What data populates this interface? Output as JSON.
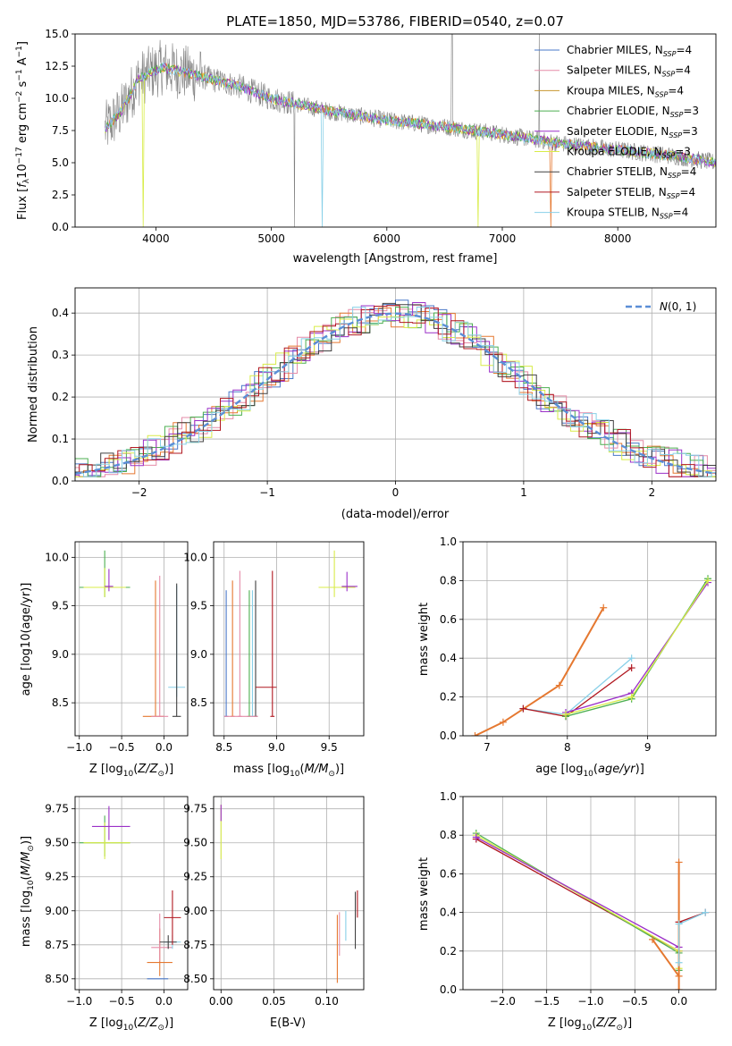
{
  "colors": {
    "chab_miles": "#4a78c8",
    "salp_miles": "#e58ca8",
    "krou_miles": "#c8962e",
    "chab_elodie": "#4caf50",
    "salp_elodie": "#9b30c8",
    "krou_elodie": "#d8ec48",
    "chab_stelib": "#404040",
    "salp_stelib": "#b01820",
    "krou_stelib": "#88d0e8",
    "orange": "#e57830",
    "gauss": "#5b8ed6",
    "data_grey": "#808080"
  },
  "legend_entries": [
    "Chabrier MILES, N_SSP=4",
    "Salpeter MILES, N_SSP=4",
    "Kroupa MILES, N_SSP=4",
    "Chabrier ELODIE, N_SSP=3",
    "Salpeter ELODIE, N_SSP=3",
    "Kroupa ELODIE, N_SSP=3",
    "Chabrier STELIB, N_SSP=4",
    "Salpeter STELIB, N_SSP=4",
    "Kroupa STELIB, N_SSP=4"
  ],
  "chart_data": [
    {
      "id": "spectrum",
      "type": "line",
      "title": "PLATE=1850, MJD=53786, FIBERID=0540, z=0.07",
      "xlabel": "wavelength [Angstrom, rest frame]",
      "ylabel": "Flux [f_λ10^-17 erg cm^-2 s^-1 A^-1]",
      "xlim": [
        3300,
        8850
      ],
      "ylim": [
        0,
        15
      ],
      "xticks": [
        4000,
        5000,
        6000,
        7000,
        8000
      ],
      "yticks": [
        0.0,
        2.5,
        5.0,
        7.5,
        10.0,
        12.5,
        15.0
      ],
      "grid": false,
      "legend": "top-right",
      "continuum": [
        [
          3560,
          7.6
        ],
        [
          3700,
          9.0
        ],
        [
          3850,
          11.5
        ],
        [
          4050,
          12.4
        ],
        [
          4300,
          11.9
        ],
        [
          4700,
          11.0
        ],
        [
          5000,
          10.0
        ],
        [
          5500,
          9.0
        ],
        [
          6000,
          8.3
        ],
        [
          6500,
          7.8
        ],
        [
          7000,
          7.2
        ],
        [
          7500,
          6.5
        ],
        [
          8000,
          6.0
        ],
        [
          8500,
          5.5
        ],
        [
          8850,
          5.0
        ]
      ]
    },
    {
      "id": "residual-histogram",
      "type": "line",
      "xlabel": "(data-model)/error",
      "ylabel": "Normed distribution",
      "xlim": [
        -2.5,
        2.5
      ],
      "ylim": [
        0,
        0.46
      ],
      "xticks": [
        -2,
        -1,
        0,
        1,
        2
      ],
      "yticks": [
        0.0,
        0.1,
        0.2,
        0.3,
        0.4
      ],
      "grid": true,
      "legend": "top-right",
      "gaussian_label": "N(0, 1)"
    },
    {
      "id": "age-vs-Z",
      "type": "scatter",
      "xlabel": "Z [log10(Z/Z⊙)]",
      "ylabel": "age  [log10(age/yr)]",
      "xlim": [
        -1.05,
        0.28
      ],
      "ylim": [
        8.16,
        10.16
      ],
      "xticks": [
        -1.0,
        -0.5,
        0.0
      ],
      "yticks": [
        8.5,
        9.0,
        9.5,
        10.0
      ],
      "grid": true
    },
    {
      "id": "age-vs-mass",
      "type": "scatter",
      "xlabel": "mass [log10(M/M⊙)]",
      "xlim": [
        8.4,
        9.83
      ],
      "ylim": [
        8.16,
        10.16
      ],
      "xticks": [
        8.5,
        9.0,
        9.5
      ],
      "yticks": [
        8.5,
        9.0,
        9.5,
        10.0
      ],
      "grid": true
    },
    {
      "id": "weight-vs-age",
      "type": "line",
      "xlabel": "age  [log10(age/yr)]",
      "ylabel": "mass weight",
      "xlim": [
        6.7,
        9.85
      ],
      "ylim": [
        0,
        1
      ],
      "xticks": [
        7,
        8,
        9
      ],
      "yticks": [
        0.0,
        0.2,
        0.4,
        0.6,
        0.8,
        1.0
      ],
      "grid": true,
      "series": [
        {
          "color": "orange",
          "points": [
            [
              6.85,
              0.0
            ],
            [
              7.2,
              0.07
            ],
            [
              7.9,
              0.26
            ],
            [
              8.45,
              0.66
            ]
          ]
        },
        {
          "color": "krou_stelib",
          "points": [
            [
              7.45,
              0.14
            ],
            [
              7.98,
              0.11
            ],
            [
              8.8,
              0.4
            ]
          ]
        },
        {
          "color": "salp_stelib",
          "points": [
            [
              7.45,
              0.14
            ],
            [
              7.98,
              0.1
            ],
            [
              8.8,
              0.35
            ]
          ]
        },
        {
          "color": "salp_elodie",
          "points": [
            [
              7.98,
              0.12
            ],
            [
              8.8,
              0.22
            ],
            [
              9.75,
              0.79
            ]
          ]
        },
        {
          "color": "chab_elodie",
          "points": [
            [
              7.98,
              0.1
            ],
            [
              8.8,
              0.19
            ],
            [
              9.75,
              0.81
            ]
          ]
        },
        {
          "color": "krou_elodie",
          "points": [
            [
              7.98,
              0.11
            ],
            [
              8.8,
              0.2
            ],
            [
              9.75,
              0.8
            ]
          ]
        }
      ]
    },
    {
      "id": "mass-vs-Z",
      "type": "scatter",
      "xlabel": "Z [log10(Z/Z⊙)]",
      "ylabel": "mass [log10(M/M⊙)]",
      "xlim": [
        -1.05,
        0.28
      ],
      "ylim": [
        8.42,
        9.84
      ],
      "xticks": [
        -1.0,
        -0.5,
        0.0
      ],
      "yticks": [
        8.5,
        8.75,
        9.0,
        9.25,
        9.5,
        9.75
      ],
      "grid": true
    },
    {
      "id": "mass-vs-EBV",
      "type": "scatter",
      "xlabel": "E(B-V)",
      "xlim": [
        -0.007,
        0.135
      ],
      "ylim": [
        8.42,
        9.84
      ],
      "xticks": [
        0.0,
        0.05,
        0.1
      ],
      "yticks": [
        8.5,
        8.75,
        9.0,
        9.25,
        9.5,
        9.75
      ],
      "grid": true
    },
    {
      "id": "weight-vs-Z",
      "type": "line",
      "xlabel": "Z [log10(Z/Z⊙)]",
      "ylabel": "mass weight",
      "xlim": [
        -2.45,
        0.42
      ],
      "ylim": [
        0,
        1
      ],
      "xticks": [
        -2.0,
        -1.5,
        -1.0,
        -0.5,
        0.0
      ],
      "yticks": [
        0.0,
        0.2,
        0.4,
        0.6,
        0.8,
        1.0
      ],
      "grid": true,
      "series": [
        {
          "color": "salp_stelib",
          "points": [
            [
              -2.3,
              0.78
            ],
            [
              0.0,
              0.2
            ],
            [
              0.0,
              0.35
            ],
            [
              0.3,
              0.4
            ]
          ]
        },
        {
          "color": "chab_elodie",
          "points": [
            [
              -2.3,
              0.81
            ],
            [
              0.0,
              0.19
            ],
            [
              0.0,
              0.1
            ]
          ]
        },
        {
          "color": "krou_elodie",
          "points": [
            [
              -2.3,
              0.8
            ],
            [
              0.0,
              0.2
            ],
            [
              0.0,
              0.11
            ]
          ]
        },
        {
          "color": "salp_elodie",
          "points": [
            [
              -2.3,
              0.79
            ],
            [
              0.0,
              0.22
            ]
          ]
        },
        {
          "color": "orange",
          "points": [
            [
              -0.3,
              0.26
            ],
            [
              0.0,
              0.07
            ],
            [
              0.0,
              0.66
            ],
            [
              0.0,
              0.0
            ]
          ]
        },
        {
          "color": "krou_stelib",
          "points": [
            [
              0.0,
              0.14
            ],
            [
              0.0,
              0.34
            ],
            [
              0.3,
              0.4
            ]
          ]
        }
      ]
    }
  ]
}
